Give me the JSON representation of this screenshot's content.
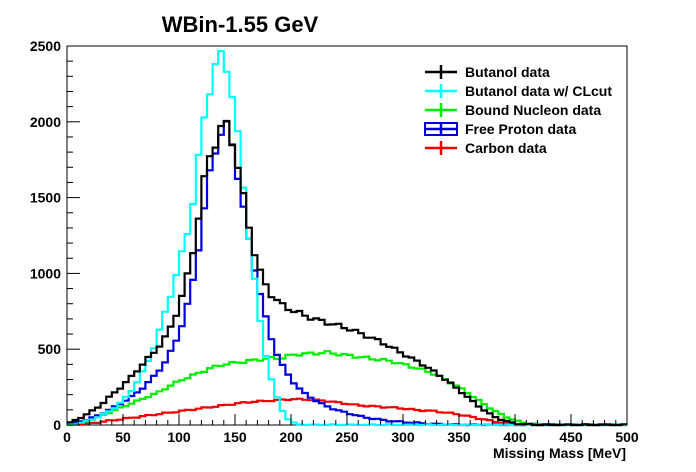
{
  "chart_data": {
    "type": "line",
    "title": "WBin-1.55 GeV",
    "xlabel": "Missing Mass [MeV]",
    "ylabel": "",
    "xlim": [
      0,
      500
    ],
    "ylim": [
      0,
      2500
    ],
    "x_ticks": [
      0,
      50,
      100,
      150,
      200,
      250,
      300,
      350,
      400,
      450,
      500
    ],
    "y_ticks": [
      0,
      500,
      1000,
      1500,
      2000,
      2500
    ],
    "grid": false,
    "legend_position": "top-right",
    "bin_width": 5,
    "series": [
      {
        "name": "Butanol data",
        "color": "#000000",
        "x": [
          0,
          10,
          20,
          30,
          40,
          50,
          60,
          70,
          80,
          90,
          100,
          110,
          115,
          120,
          125,
          130,
          135,
          140,
          145,
          150,
          155,
          160,
          170,
          180,
          190,
          200,
          210,
          220,
          230,
          240,
          250,
          260,
          270,
          280,
          290,
          300,
          310,
          320,
          330,
          340,
          350,
          360,
          370,
          380,
          390,
          400,
          410,
          420,
          430,
          440,
          450,
          460,
          470,
          480,
          490,
          500
        ],
        "values": [
          5,
          40,
          80,
          130,
          200,
          260,
          340,
          420,
          500,
          600,
          780,
          1050,
          1250,
          1500,
          1720,
          1830,
          1900,
          2000,
          1960,
          1800,
          1600,
          1400,
          1050,
          880,
          800,
          760,
          730,
          700,
          680,
          660,
          640,
          610,
          580,
          550,
          510,
          470,
          430,
          390,
          340,
          290,
          230,
          170,
          110,
          60,
          30,
          10,
          5,
          0,
          0,
          0,
          0,
          0,
          0,
          0,
          0,
          0
        ]
      },
      {
        "name": "Butanol data w/ CLcut",
        "color": "#00ffff",
        "x": [
          0,
          10,
          20,
          30,
          40,
          50,
          60,
          70,
          80,
          90,
          100,
          110,
          115,
          120,
          125,
          130,
          135,
          140,
          145,
          150,
          155,
          160,
          165,
          170,
          175,
          180,
          185,
          190,
          195,
          200,
          205,
          210,
          220,
          230,
          240,
          250,
          260,
          270,
          280,
          290,
          300,
          310,
          320,
          330,
          340,
          350,
          360,
          370,
          380,
          390,
          400,
          410,
          420,
          430,
          440,
          450,
          460,
          470,
          480,
          490,
          500
        ],
        "values": [
          0,
          10,
          30,
          60,
          100,
          160,
          250,
          380,
          560,
          800,
          1050,
          1350,
          1600,
          1900,
          2150,
          2300,
          2420,
          2440,
          2300,
          2050,
          1750,
          1400,
          1100,
          800,
          560,
          370,
          230,
          130,
          60,
          20,
          5,
          0,
          0,
          0,
          0,
          0,
          0,
          0,
          0,
          0,
          0,
          0,
          0,
          0,
          0,
          0,
          0,
          0,
          0,
          0,
          0,
          0,
          0,
          0,
          0,
          0,
          0,
          0,
          0,
          0,
          0
        ]
      },
      {
        "name": "Bound Nucleon data",
        "color": "#00ee00",
        "x": [
          0,
          10,
          20,
          30,
          40,
          50,
          60,
          70,
          80,
          90,
          100,
          110,
          120,
          130,
          140,
          150,
          160,
          170,
          180,
          190,
          200,
          210,
          220,
          230,
          240,
          250,
          260,
          270,
          280,
          290,
          300,
          310,
          320,
          330,
          340,
          350,
          360,
          370,
          380,
          390,
          400,
          410,
          420,
          430,
          440,
          450,
          460,
          470,
          480,
          490,
          500
        ],
        "values": [
          0,
          10,
          30,
          60,
          90,
          120,
          150,
          180,
          210,
          250,
          290,
          320,
          350,
          380,
          400,
          410,
          420,
          430,
          440,
          440,
          460,
          470,
          470,
          480,
          470,
          460,
          450,
          440,
          430,
          420,
          400,
          380,
          360,
          330,
          290,
          250,
          200,
          150,
          100,
          60,
          30,
          10,
          5,
          0,
          0,
          0,
          0,
          0,
          0,
          0,
          0
        ]
      },
      {
        "name": "Free Proton data",
        "color": "#0000dd",
        "x": [
          0,
          10,
          20,
          30,
          40,
          50,
          60,
          70,
          80,
          90,
          100,
          110,
          115,
          120,
          125,
          130,
          135,
          140,
          145,
          150,
          155,
          160,
          170,
          180,
          190,
          200,
          210,
          220,
          230,
          240,
          250,
          260,
          270,
          280,
          290,
          300,
          310,
          320,
          330,
          340,
          350,
          360,
          370,
          380,
          390,
          400,
          410,
          420,
          430,
          440,
          450,
          460,
          470,
          480,
          490,
          500
        ],
        "values": [
          0,
          20,
          40,
          70,
          110,
          150,
          200,
          260,
          340,
          440,
          600,
          850,
          1050,
          1300,
          1550,
          1750,
          1880,
          1990,
          1940,
          1760,
          1550,
          1300,
          950,
          620,
          420,
          300,
          220,
          170,
          130,
          100,
          80,
          60,
          45,
          35,
          25,
          20,
          15,
          10,
          5,
          5,
          0,
          0,
          0,
          0,
          0,
          0,
          0,
          0,
          0,
          0,
          0,
          0,
          0,
          0,
          0,
          0
        ]
      },
      {
        "name": "Carbon data",
        "color": "#ee0000",
        "x": [
          0,
          10,
          20,
          30,
          40,
          50,
          60,
          70,
          80,
          90,
          100,
          110,
          120,
          130,
          140,
          150,
          160,
          170,
          180,
          190,
          200,
          210,
          220,
          230,
          240,
          250,
          260,
          270,
          280,
          290,
          300,
          310,
          320,
          330,
          340,
          350,
          360,
          370,
          380,
          390,
          400,
          410,
          420,
          430,
          440,
          450,
          460,
          470,
          480,
          490,
          500
        ],
        "values": [
          0,
          5,
          10,
          20,
          30,
          40,
          50,
          60,
          70,
          80,
          90,
          100,
          110,
          120,
          130,
          140,
          150,
          155,
          160,
          165,
          170,
          170,
          165,
          160,
          150,
          140,
          130,
          125,
          120,
          115,
          110,
          100,
          95,
          90,
          80,
          70,
          55,
          40,
          25,
          15,
          5,
          0,
          0,
          0,
          0,
          0,
          0,
          0,
          0,
          0,
          0
        ]
      }
    ]
  }
}
